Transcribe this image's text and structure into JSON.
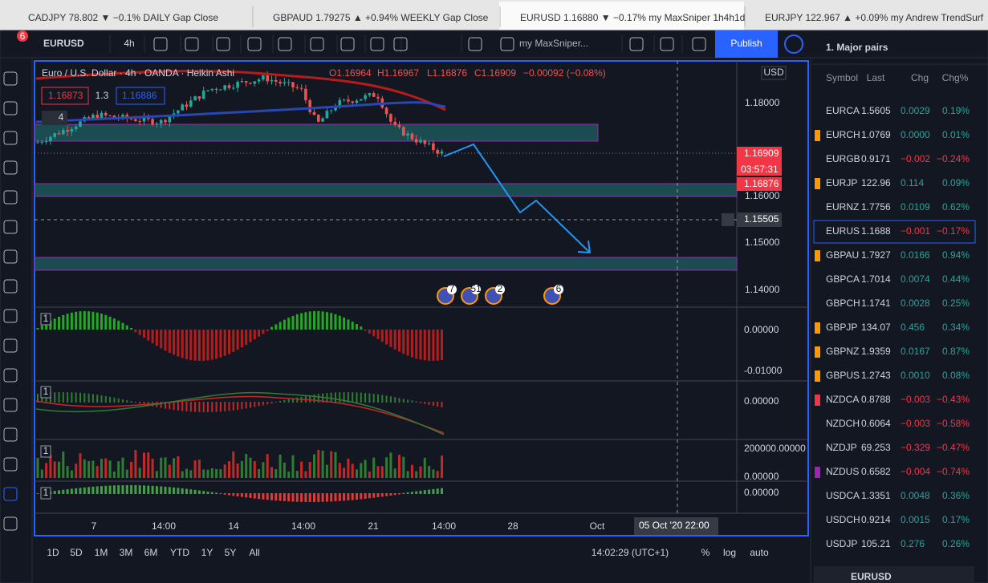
{
  "tabs": [
    "CADJPY 78.802 ▼ −0.1% DAILY Gap Close",
    "GBPAUD 1.79275 ▲ +0.94% WEEKLY Gap Close",
    "EURUSD 1.16880 ▼ −0.17% my MaxSniper 1h4h1d",
    "EURJPY 122.967 ▲ +0.09% my Andrew TrendSurf"
  ],
  "toolbar": {
    "symbol": "EURUSD",
    "interval": "4h",
    "layout": "my MaxSniper...",
    "publish": "Publish"
  },
  "left_badge": "6",
  "chart": {
    "legend": "Euro / U.S. Dollar · 4h · OANDA · Heikin Ashi",
    "ohlc": [
      "O1.16964",
      "H1.16967",
      "L1.16876",
      "C1.16909",
      "−0.00092 (−0.08%)"
    ],
    "sell": "1.16873",
    "spread": "1.3",
    "buy": "1.16886",
    "indicators": "4",
    "currency": "USD",
    "price_ticks": [
      "1.18000",
      "1.16000",
      "1.15000",
      "1.14000"
    ],
    "last_price": "1.16909",
    "countdown": "03:57:31",
    "low_price": "1.16876",
    "crosshair_price": "1.15505",
    "events": [
      "7",
      "51",
      "2",
      "6"
    ],
    "panes": [
      {
        "label": "1",
        "ticks": [
          "0.00000",
          "-0.01000"
        ]
      },
      {
        "label": "1",
        "ticks": [
          "0.00000"
        ]
      },
      {
        "label": "1",
        "ticks": [
          "200000.00000",
          "0.00000"
        ]
      },
      {
        "label": "1",
        "ticks": [
          "0.00000"
        ]
      }
    ],
    "time_ticks": [
      "7",
      "14:00",
      "14",
      "14:00",
      "21",
      "14:00",
      "28",
      "Oct"
    ],
    "crosshair_time": "05 Oct '20   22:00"
  },
  "bottom": {
    "ranges": [
      "1D",
      "5D",
      "1M",
      "3M",
      "6M",
      "YTD",
      "1Y",
      "5Y",
      "All"
    ],
    "clock": "14:02:29 (UTC+1)",
    "options": [
      "%",
      "log",
      "auto"
    ]
  },
  "watchlist": {
    "title": "1. Major pairs",
    "headers": [
      "Symbol",
      "Last",
      "Chg",
      "Chg%"
    ],
    "rows": [
      {
        "symbol": "EURCA",
        "last": "1.5605",
        "chg": "0.0029",
        "chg_pct": "0.19%"
      },
      {
        "symbol": "EURCH",
        "last": "1.0769",
        "chg": "0.0000",
        "chg_pct": "0.01%",
        "flag": "#ff9800"
      },
      {
        "symbol": "EURGB",
        "last": "0.9171",
        "chg": "−0.002",
        "chg_pct": "−0.24%"
      },
      {
        "symbol": "EURJP",
        "last": "122.96",
        "chg": "0.114",
        "chg_pct": "0.09%",
        "flag": "#ff9800"
      },
      {
        "symbol": "EURNZ",
        "last": "1.7756",
        "chg": "0.0109",
        "chg_pct": "0.62%"
      },
      {
        "symbol": "EURUS",
        "last": "1.1688",
        "chg": "−0.001",
        "chg_pct": "−0.17%"
      },
      {
        "symbol": "GBPAU",
        "last": "1.7927",
        "chg": "0.0166",
        "chg_pct": "0.94%",
        "flag": "#ff9800"
      },
      {
        "symbol": "GBPCA",
        "last": "1.7014",
        "chg": "0.0074",
        "chg_pct": "0.44%"
      },
      {
        "symbol": "GBPCH",
        "last": "1.1741",
        "chg": "0.0028",
        "chg_pct": "0.25%"
      },
      {
        "symbol": "GBPJP",
        "last": "134.07",
        "chg": "0.456",
        "chg_pct": "0.34%",
        "flag": "#ff9800"
      },
      {
        "symbol": "GBPNZ",
        "last": "1.9359",
        "chg": "0.0167",
        "chg_pct": "0.87%",
        "flag": "#ff9800"
      },
      {
        "symbol": "GBPUS",
        "last": "1.2743",
        "chg": "0.0010",
        "chg_pct": "0.08%",
        "flag": "#ff9800"
      },
      {
        "symbol": "NZDCA",
        "last": "0.8788",
        "chg": "−0.003",
        "chg_pct": "−0.43%",
        "flag": "#f23645"
      },
      {
        "symbol": "NZDCH",
        "last": "0.6064",
        "chg": "−0.003",
        "chg_pct": "−0.58%"
      },
      {
        "symbol": "NZDJP",
        "last": "69.253",
        "chg": "−0.329",
        "chg_pct": "−0.47%"
      },
      {
        "symbol": "NZDUS",
        "last": "0.6582",
        "chg": "−0.004",
        "chg_pct": "−0.74%",
        "flag": "#9c27b0"
      },
      {
        "symbol": "USDCA",
        "last": "1.3351",
        "chg": "0.0048",
        "chg_pct": "0.36%"
      },
      {
        "symbol": "USDCH",
        "last": "0.9214",
        "chg": "0.0015",
        "chg_pct": "0.17%"
      },
      {
        "symbol": "USDJP",
        "last": "105.21",
        "chg": "0.276",
        "chg_pct": "0.26%"
      }
    ],
    "footer": "EURUSD"
  }
}
